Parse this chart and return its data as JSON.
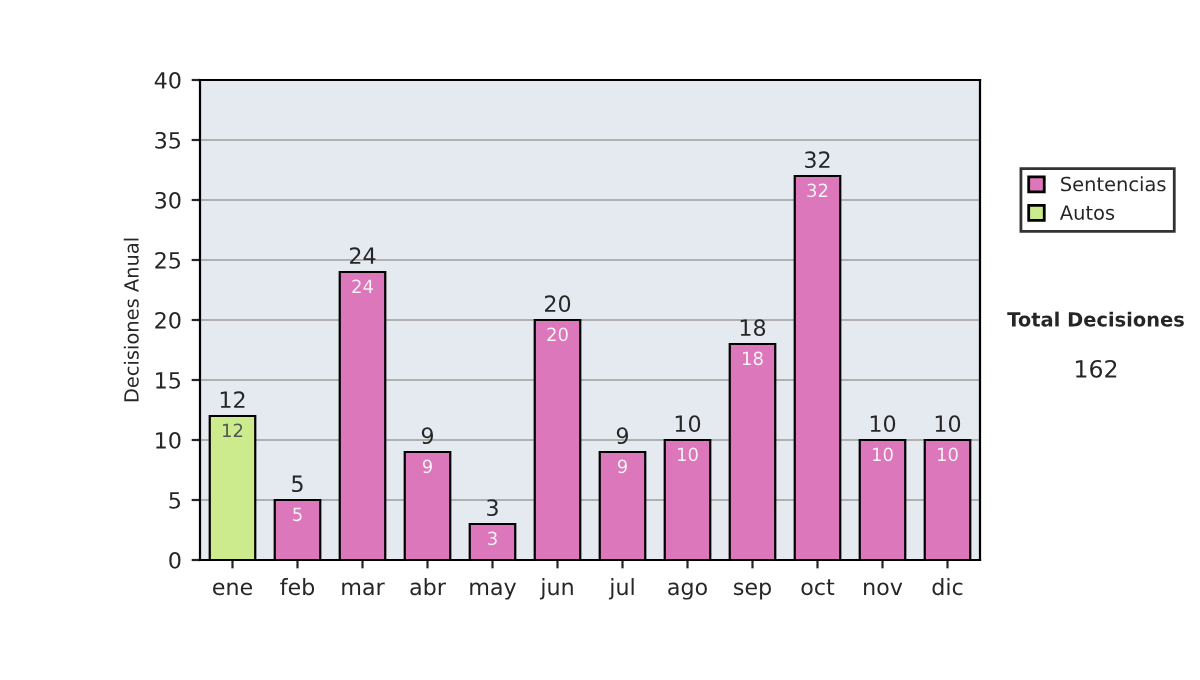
{
  "chart_data": {
    "type": "bar",
    "ylabel": "Decisiones Anual",
    "categories": [
      "ene",
      "feb",
      "mar",
      "abr",
      "may",
      "jun",
      "jul",
      "ago",
      "sep",
      "oct",
      "nov",
      "dic"
    ],
    "series": [
      {
        "name": "Sentencias",
        "color": "#dd77bb",
        "values": [
          null,
          5,
          24,
          9,
          3,
          20,
          9,
          10,
          18,
          32,
          10,
          10
        ]
      },
      {
        "name": "Autos",
        "color": "#cceb8c",
        "values": [
          12,
          null,
          null,
          null,
          null,
          null,
          null,
          null,
          null,
          null,
          null,
          null
        ]
      }
    ],
    "stacked": true,
    "data_labels": true,
    "totals": [
      "12",
      "5",
      "24",
      "9",
      "3",
      "20",
      "9",
      "10",
      "18",
      "32",
      "10",
      "10"
    ],
    "ylim": [
      0,
      40
    ],
    "yticks": [
      0,
      5,
      10,
      15,
      20,
      25,
      30,
      35,
      40
    ],
    "grid": "y",
    "legend": "right",
    "annotations": [
      "Total Decisiones",
      "162"
    ]
  }
}
